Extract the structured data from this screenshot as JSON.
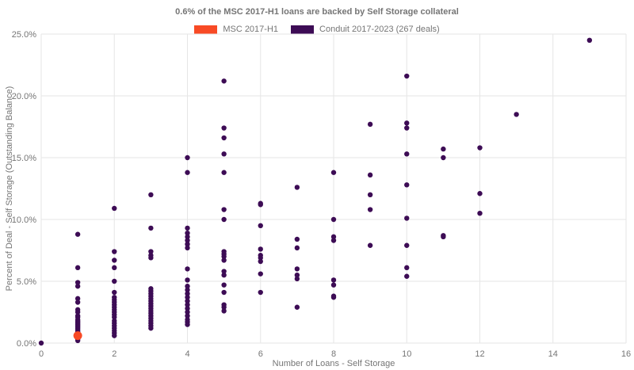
{
  "title": "0.6% of the MSC 2017-H1 loans are backed by Self Storage collateral",
  "legend": {
    "items": [
      {
        "label": "MSC 2017-H1",
        "color": "#F84A25"
      },
      {
        "label": "Conduit 2017-2023 (267 deals)",
        "color": "#3D0C55"
      }
    ]
  },
  "axes": {
    "x_label": "Number of Loans - Self Storage",
    "y_label": "Percent of Deal - Self Storage (Outstanding Balance)"
  },
  "chart_data": {
    "type": "scatter",
    "title": "0.6% of the MSC 2017-H1 loans are backed by Self Storage collateral",
    "xlabel": "Number of Loans - Self Storage",
    "ylabel": "Percent of Deal - Self Storage (Outstanding Balance)",
    "xlim": [
      0,
      16
    ],
    "ylim": [
      0,
      25
    ],
    "x_ticks": [
      0,
      2,
      4,
      6,
      8,
      10,
      12,
      14,
      16
    ],
    "y_ticks": [
      0,
      5,
      10,
      15,
      20,
      25
    ],
    "y_tick_labels": [
      "0.0%",
      "5.0%",
      "10.0%",
      "15.0%",
      "20.0%",
      "25.0%"
    ],
    "grid": true,
    "legend_position": "top-center",
    "grid_color": "#e6e6e6",
    "series": [
      {
        "name": "Conduit 2017-2023 (267 deals)",
        "color": "#3D0C55",
        "radius": 3.2,
        "points": [
          [
            0,
            0.0
          ],
          [
            1,
            8.8
          ],
          [
            1,
            6.1
          ],
          [
            1,
            4.9
          ],
          [
            1,
            4.6
          ],
          [
            1,
            3.6
          ],
          [
            1,
            3.3
          ],
          [
            1,
            2.7
          ],
          [
            1,
            2.5
          ],
          [
            1,
            2.2
          ],
          [
            1,
            2.1
          ],
          [
            1,
            1.9
          ],
          [
            1,
            1.8
          ],
          [
            1,
            1.7
          ],
          [
            1,
            1.6
          ],
          [
            1,
            1.5
          ],
          [
            1,
            1.4
          ],
          [
            1,
            1.3
          ],
          [
            1,
            1.2
          ],
          [
            1,
            1.1
          ],
          [
            1,
            1.0
          ],
          [
            1,
            0.9
          ],
          [
            1,
            0.8
          ],
          [
            1,
            0.3
          ],
          [
            1,
            0.2
          ],
          [
            2,
            10.9
          ],
          [
            2,
            7.4
          ],
          [
            2,
            6.7
          ],
          [
            2,
            6.1
          ],
          [
            2,
            5.0
          ],
          [
            2,
            4.1
          ],
          [
            2,
            3.7
          ],
          [
            2,
            3.5
          ],
          [
            2,
            3.3
          ],
          [
            2,
            3.1
          ],
          [
            2,
            2.9
          ],
          [
            2,
            2.7
          ],
          [
            2,
            2.5
          ],
          [
            2,
            2.3
          ],
          [
            2,
            2.1
          ],
          [
            2,
            1.8
          ],
          [
            2,
            1.6
          ],
          [
            2,
            1.4
          ],
          [
            2,
            1.2
          ],
          [
            2,
            1.0
          ],
          [
            2,
            0.8
          ],
          [
            2,
            0.6
          ],
          [
            3,
            12.0
          ],
          [
            3,
            9.3
          ],
          [
            3,
            7.4
          ],
          [
            3,
            7.1
          ],
          [
            3,
            6.9
          ],
          [
            3,
            4.4
          ],
          [
            3,
            4.2
          ],
          [
            3,
            4.0
          ],
          [
            3,
            3.8
          ],
          [
            3,
            3.6
          ],
          [
            3,
            3.4
          ],
          [
            3,
            3.2
          ],
          [
            3,
            3.0
          ],
          [
            3,
            2.8
          ],
          [
            3,
            2.6
          ],
          [
            3,
            2.4
          ],
          [
            3,
            2.2
          ],
          [
            3,
            2.0
          ],
          [
            3,
            1.8
          ],
          [
            3,
            1.6
          ],
          [
            3,
            1.4
          ],
          [
            3,
            1.2
          ],
          [
            4,
            15.0
          ],
          [
            4,
            13.8
          ],
          [
            4,
            9.3
          ],
          [
            4,
            8.9
          ],
          [
            4,
            8.6
          ],
          [
            4,
            8.3
          ],
          [
            4,
            8.0
          ],
          [
            4,
            7.7
          ],
          [
            4,
            6.0
          ],
          [
            4,
            5.1
          ],
          [
            4,
            4.6
          ],
          [
            4,
            4.3
          ],
          [
            4,
            4.0
          ],
          [
            4,
            3.7
          ],
          [
            4,
            3.4
          ],
          [
            4,
            3.1
          ],
          [
            4,
            2.8
          ],
          [
            4,
            2.5
          ],
          [
            4,
            2.2
          ],
          [
            4,
            1.9
          ],
          [
            4,
            1.7
          ],
          [
            4,
            1.5
          ],
          [
            5,
            21.2
          ],
          [
            5,
            17.4
          ],
          [
            5,
            16.6
          ],
          [
            5,
            15.3
          ],
          [
            5,
            13.8
          ],
          [
            5,
            10.8
          ],
          [
            5,
            10.0
          ],
          [
            5,
            7.4
          ],
          [
            5,
            7.2
          ],
          [
            5,
            7.0
          ],
          [
            5,
            6.7
          ],
          [
            5,
            5.8
          ],
          [
            5,
            5.5
          ],
          [
            5,
            4.7
          ],
          [
            5,
            4.1
          ],
          [
            5,
            3.1
          ],
          [
            5,
            2.9
          ],
          [
            5,
            2.6
          ],
          [
            6,
            11.3
          ],
          [
            6,
            11.2
          ],
          [
            6,
            9.5
          ],
          [
            6,
            7.6
          ],
          [
            6,
            7.1
          ],
          [
            6,
            6.9
          ],
          [
            6,
            6.6
          ],
          [
            6,
            5.6
          ],
          [
            6,
            4.1
          ],
          [
            7,
            12.6
          ],
          [
            7,
            8.4
          ],
          [
            7,
            7.7
          ],
          [
            7,
            6.0
          ],
          [
            7,
            5.5
          ],
          [
            7,
            5.2
          ],
          [
            7,
            2.9
          ],
          [
            8,
            13.8
          ],
          [
            8,
            10.0
          ],
          [
            8,
            8.6
          ],
          [
            8,
            8.3
          ],
          [
            8,
            5.1
          ],
          [
            8,
            4.7
          ],
          [
            8,
            3.8
          ],
          [
            8,
            3.7
          ],
          [
            9,
            17.7
          ],
          [
            9,
            13.6
          ],
          [
            9,
            12.0
          ],
          [
            9,
            10.8
          ],
          [
            9,
            7.9
          ],
          [
            10,
            21.6
          ],
          [
            10,
            17.8
          ],
          [
            10,
            17.4
          ],
          [
            10,
            15.3
          ],
          [
            10,
            12.8
          ],
          [
            10,
            10.1
          ],
          [
            10,
            7.9
          ],
          [
            10,
            6.1
          ],
          [
            10,
            5.4
          ],
          [
            11,
            15.7
          ],
          [
            11,
            15.0
          ],
          [
            11,
            8.7
          ],
          [
            11,
            8.6
          ],
          [
            12,
            15.8
          ],
          [
            12,
            12.1
          ],
          [
            12,
            10.5
          ],
          [
            13,
            18.5
          ],
          [
            15,
            24.5
          ]
        ]
      },
      {
        "name": "MSC 2017-H1",
        "color": "#F84A25",
        "radius": 5.5,
        "points": [
          [
            1,
            0.6
          ]
        ]
      }
    ]
  }
}
